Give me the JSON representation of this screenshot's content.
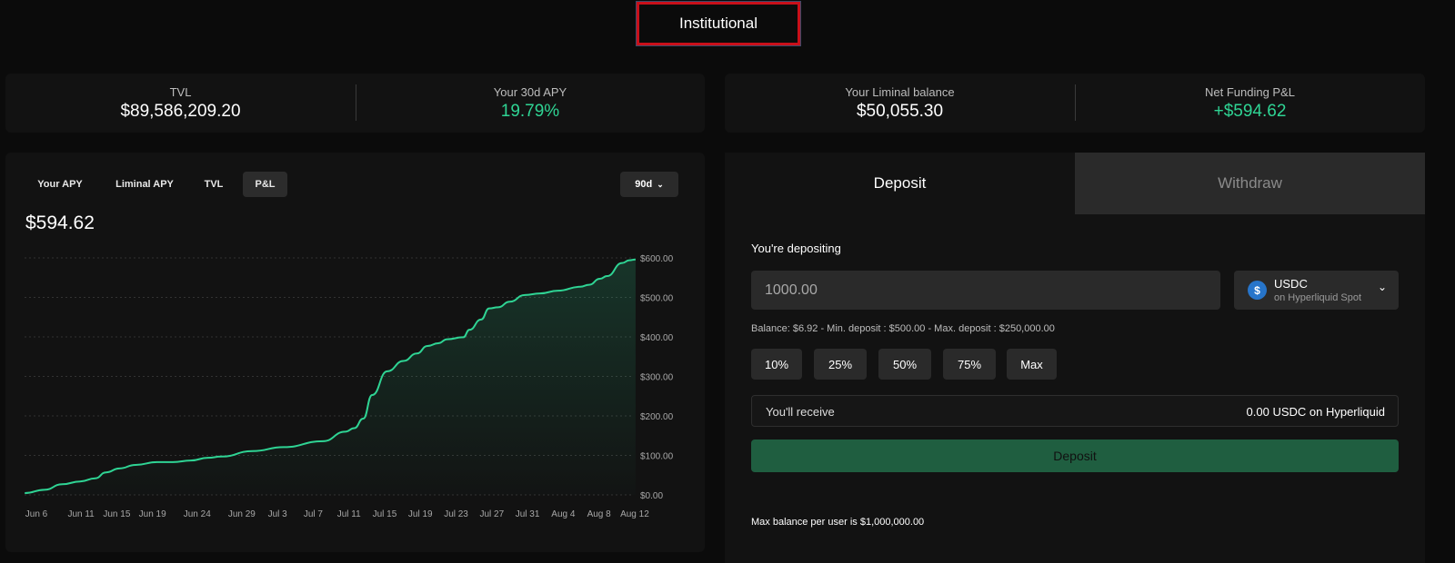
{
  "header": {
    "mode_label": "Institutional"
  },
  "stats_left": [
    {
      "label": "TVL",
      "value": "$89,586,209.20"
    },
    {
      "label": "Your 30d APY",
      "value": "19.79%"
    }
  ],
  "stats_right": [
    {
      "label": "Your Liminal balance",
      "value": "$50,055.30"
    },
    {
      "label": "Net Funding P&L",
      "value": "+$594.62"
    }
  ],
  "chart_panel": {
    "tabs": [
      {
        "label": "Your APY"
      },
      {
        "label": "Liminal APY"
      },
      {
        "label": "TVL"
      },
      {
        "label": "P&L",
        "active": true
      }
    ],
    "range": "90d",
    "headline_value": "$594.62"
  },
  "chart_data": {
    "type": "area",
    "title": "P&L",
    "xlabel": "",
    "ylabel": "",
    "ylim": [
      0,
      600
    ],
    "y_ticks": [
      "$0.00",
      "$100.00",
      "$200.00",
      "$300.00",
      "$400.00",
      "$500.00",
      "$600.00"
    ],
    "y_tick_values": [
      0,
      100,
      200,
      300,
      400,
      500,
      600
    ],
    "x_ticks": [
      {
        "label": "Jun 6",
        "day": 0
      },
      {
        "label": "Jun 11",
        "day": 5
      },
      {
        "label": "Jun 15",
        "day": 9
      },
      {
        "label": "Jun 19",
        "day": 13
      },
      {
        "label": "Jun 24",
        "day": 18
      },
      {
        "label": "Jun 29",
        "day": 23
      },
      {
        "label": "Jul 3",
        "day": 27
      },
      {
        "label": "Jul 7",
        "day": 31
      },
      {
        "label": "Jul 11",
        "day": 35
      },
      {
        "label": "Jul 15",
        "day": 39
      },
      {
        "label": "Jul 19",
        "day": 43
      },
      {
        "label": "Jul 23",
        "day": 47
      },
      {
        "label": "Jul 27",
        "day": 51
      },
      {
        "label": "Jul 31",
        "day": 55
      },
      {
        "label": "Aug 4",
        "day": 59
      },
      {
        "label": "Aug 8",
        "day": 63
      },
      {
        "label": "Aug 12",
        "day": 67
      }
    ],
    "x_unit": "days since Jun 6",
    "series": [
      {
        "name": "P&L",
        "color": "#2fd494",
        "points": [
          [
            -1.3,
            4.5
          ],
          [
            0.9,
            13
          ],
          [
            2.9,
            27
          ],
          [
            4.9,
            34
          ],
          [
            6.6,
            42
          ],
          [
            7.8,
            57
          ],
          [
            9.3,
            67
          ],
          [
            11.1,
            76
          ],
          [
            13.5,
            83
          ],
          [
            15.3,
            83
          ],
          [
            17.3,
            87
          ],
          [
            19.2,
            94
          ],
          [
            20.7,
            97
          ],
          [
            24.2,
            111
          ],
          [
            27.7,
            121
          ],
          [
            32.1,
            136
          ],
          [
            34.6,
            160
          ],
          [
            35.6,
            169
          ],
          [
            36.6,
            193
          ],
          [
            37.6,
            253
          ],
          [
            39.3,
            313
          ],
          [
            41.1,
            339
          ],
          [
            42.6,
            358
          ],
          [
            43.8,
            377
          ],
          [
            45.0,
            384
          ],
          [
            46.0,
            394
          ],
          [
            47.8,
            399
          ],
          [
            48.5,
            418
          ],
          [
            49.8,
            444
          ],
          [
            50.7,
            472
          ],
          [
            51.7,
            475
          ],
          [
            53.0,
            489
          ],
          [
            54.7,
            506
          ],
          [
            56.4,
            510
          ],
          [
            58.4,
            517
          ],
          [
            60.9,
            527
          ],
          [
            61.9,
            532
          ],
          [
            63.1,
            547
          ],
          [
            63.9,
            554
          ],
          [
            65.6,
            587
          ],
          [
            66.4,
            594
          ],
          [
            67.1,
            596
          ]
        ]
      }
    ]
  },
  "deposit_panel": {
    "tabs": [
      {
        "label": "Deposit",
        "active": true
      },
      {
        "label": "Withdraw"
      }
    ],
    "amount_label": "You're depositing",
    "amount_value": "1000.00",
    "token": {
      "symbol": "USDC",
      "network": "on Hyperliquid Spot",
      "icon": "usdc-icon"
    },
    "limits_text": "Balance: $6.92 - Min. deposit : $500.00 - Max. deposit : $250,000.00",
    "percent_buttons": [
      "10%",
      "25%",
      "50%",
      "75%",
      "Max"
    ],
    "receive_label": "You'll receive",
    "receive_value": "0.00 USDC on Hyperliquid",
    "submit_label": "Deposit",
    "footnote": "Max balance per user is $1,000,000.00"
  },
  "colors": {
    "accent": "#2fd494",
    "button": "#1f5e40",
    "highlight_border": "#c8101a"
  }
}
